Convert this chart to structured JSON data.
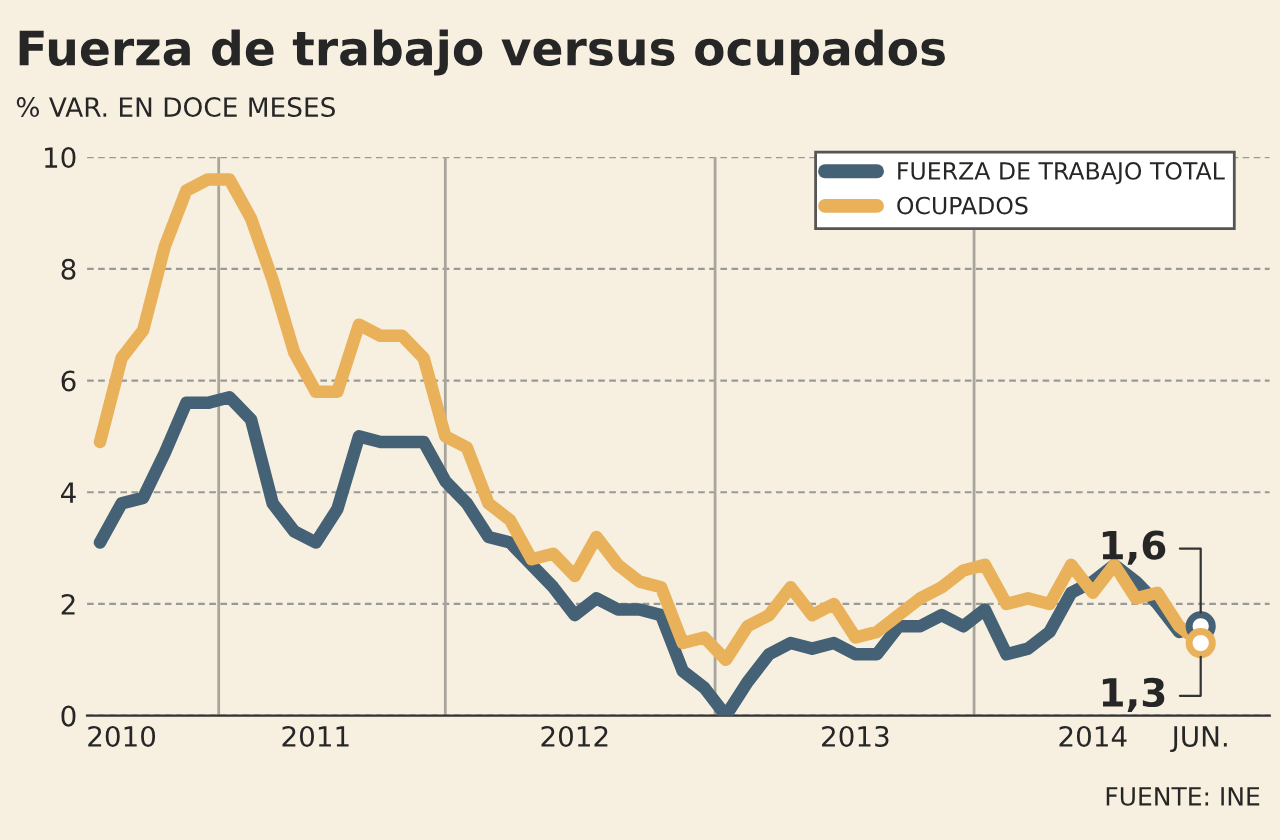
{
  "chart_data": {
    "type": "line",
    "title": "Fuerza de trabajo versus ocupados",
    "subtitle": "% VAR. EN DOCE MESES",
    "categories": [
      null,
      "2010",
      null,
      null,
      null,
      null,
      null,
      null,
      null,
      null,
      "2011",
      null,
      null,
      null,
      null,
      null,
      null,
      null,
      null,
      null,
      null,
      null,
      "2012",
      null,
      null,
      null,
      null,
      null,
      null,
      null,
      null,
      null,
      null,
      null,
      null,
      "2013",
      null,
      null,
      null,
      null,
      null,
      null,
      null,
      null,
      null,
      null,
      "2014",
      null,
      null,
      null,
      null,
      "JUN."
    ],
    "ylim": [
      0,
      10
    ],
    "yticks": [
      0,
      2,
      4,
      6,
      8,
      10
    ],
    "grid": true,
    "legend": "top right",
    "line_style": "solid",
    "series": [
      {
        "name": "FUERZA DE TRABAJO TOTAL",
        "color": "#456175",
        "values": [
          3.1,
          3.8,
          3.9,
          4.7,
          5.6,
          5.6,
          5.7,
          5.3,
          3.8,
          3.3,
          3.1,
          3.7,
          5.0,
          4.9,
          4.9,
          4.9,
          4.2,
          3.8,
          3.2,
          3.1,
          2.7,
          2.3,
          1.8,
          2.1,
          1.9,
          1.9,
          1.8,
          0.8,
          0.5,
          0.0,
          0.6,
          1.1,
          1.3,
          1.2,
          1.3,
          1.1,
          1.1,
          1.6,
          1.6,
          1.8,
          1.6,
          1.9,
          1.1,
          1.2,
          1.5,
          2.2,
          2.4,
          2.7,
          2.4,
          2.0,
          1.5,
          1.6
        ]
      },
      {
        "name": "OCUPADOS",
        "color": "#e9b25a",
        "values": [
          4.9,
          6.4,
          6.9,
          8.4,
          9.4,
          9.6,
          9.6,
          8.9,
          7.8,
          6.5,
          5.8,
          5.8,
          7.0,
          6.8,
          6.8,
          6.4,
          5.0,
          4.8,
          3.8,
          3.5,
          2.8,
          2.9,
          2.5,
          3.2,
          2.7,
          2.4,
          2.3,
          1.3,
          1.4,
          1.0,
          1.6,
          1.8,
          2.3,
          1.8,
          2.0,
          1.4,
          1.5,
          1.8,
          2.1,
          2.3,
          2.6,
          2.7,
          2.0,
          2.1,
          2.0,
          2.7,
          2.2,
          2.7,
          2.1,
          2.2,
          1.6,
          1.3
        ]
      }
    ],
    "annotations": [
      {
        "text": "1,6",
        "x": "JUN.",
        "y": 1.6
      },
      {
        "text": "1,3",
        "x": "JUN.",
        "y": 1.3
      },
      "FUENTE: INE"
    ]
  }
}
